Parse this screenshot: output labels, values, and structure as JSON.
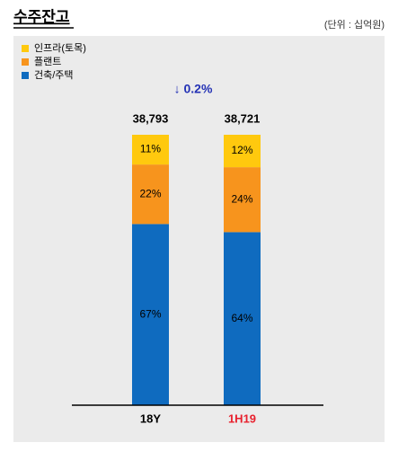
{
  "chart_data": {
    "type": "stacked_bar",
    "title": "수주잔고",
    "subtitle": "(단위 : 십억원)",
    "annotation": "↓ 0.2%",
    "categories": [
      "18Y",
      "1H19"
    ],
    "category_colors": [
      "#000000",
      "#e8212e"
    ],
    "series": [
      {
        "name": "인프라(토목)",
        "color": "#ffc90e",
        "values": [
          11,
          12
        ],
        "value_labels": [
          "11%",
          "12%"
        ]
      },
      {
        "name": "플랜트",
        "color": "#f7941d",
        "values": [
          22,
          24
        ],
        "value_labels": [
          "22%",
          "24%"
        ]
      },
      {
        "name": "건축/주택",
        "color": "#0f6bbf",
        "values": [
          67,
          64
        ],
        "value_labels": [
          "67%",
          "64%"
        ]
      }
    ],
    "totals": [
      {
        "value": 38793,
        "label": "38,793"
      },
      {
        "value": 38721,
        "label": "38,721"
      }
    ],
    "ylim": [
      0,
      100
    ],
    "legend": "top-left"
  }
}
